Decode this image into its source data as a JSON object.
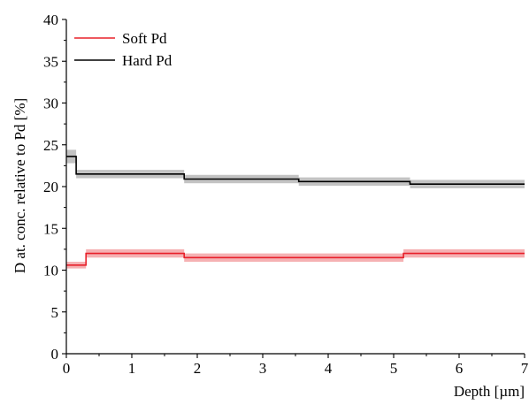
{
  "chart_data": {
    "type": "line",
    "title": "",
    "xlabel": "Depth [µm]",
    "ylabel": "D at. conc. relative to Pd [%]",
    "xlim": [
      0,
      7
    ],
    "ylim": [
      0,
      40
    ],
    "x_ticks": [
      0,
      1,
      2,
      3,
      4,
      5,
      6,
      7
    ],
    "y_ticks": [
      0,
      5,
      10,
      15,
      20,
      25,
      30,
      35,
      40
    ],
    "grid": false,
    "legend_position": "top-left",
    "step_plot": true,
    "series": [
      {
        "name": "Soft Pd",
        "color": "#e8202a",
        "band_color": "#f3a3a6",
        "steps": [
          {
            "x_start": 0.0,
            "x_end": 0.3,
            "y": 10.6,
            "band": [
              10.2,
              11.0
            ]
          },
          {
            "x_start": 0.3,
            "x_end": 1.8,
            "y": 12.0,
            "band": [
              11.5,
              12.5
            ]
          },
          {
            "x_start": 1.8,
            "x_end": 5.15,
            "y": 11.5,
            "band": [
              11.0,
              12.0
            ]
          },
          {
            "x_start": 5.15,
            "x_end": 7.0,
            "y": 12.0,
            "band": [
              11.5,
              12.5
            ]
          }
        ]
      },
      {
        "name": "Hard Pd",
        "color": "#000000",
        "band_color": "#b8b8b8",
        "steps": [
          {
            "x_start": 0.0,
            "x_end": 0.15,
            "y": 23.6,
            "band": [
              22.8,
              24.4
            ]
          },
          {
            "x_start": 0.15,
            "x_end": 1.8,
            "y": 21.5,
            "band": [
              21.0,
              22.0
            ]
          },
          {
            "x_start": 1.8,
            "x_end": 3.55,
            "y": 20.9,
            "band": [
              20.4,
              21.4
            ]
          },
          {
            "x_start": 3.55,
            "x_end": 5.25,
            "y": 20.6,
            "band": [
              20.1,
              21.1
            ]
          },
          {
            "x_start": 5.25,
            "x_end": 7.0,
            "y": 20.3,
            "band": [
              19.8,
              20.8
            ]
          }
        ]
      }
    ]
  }
}
